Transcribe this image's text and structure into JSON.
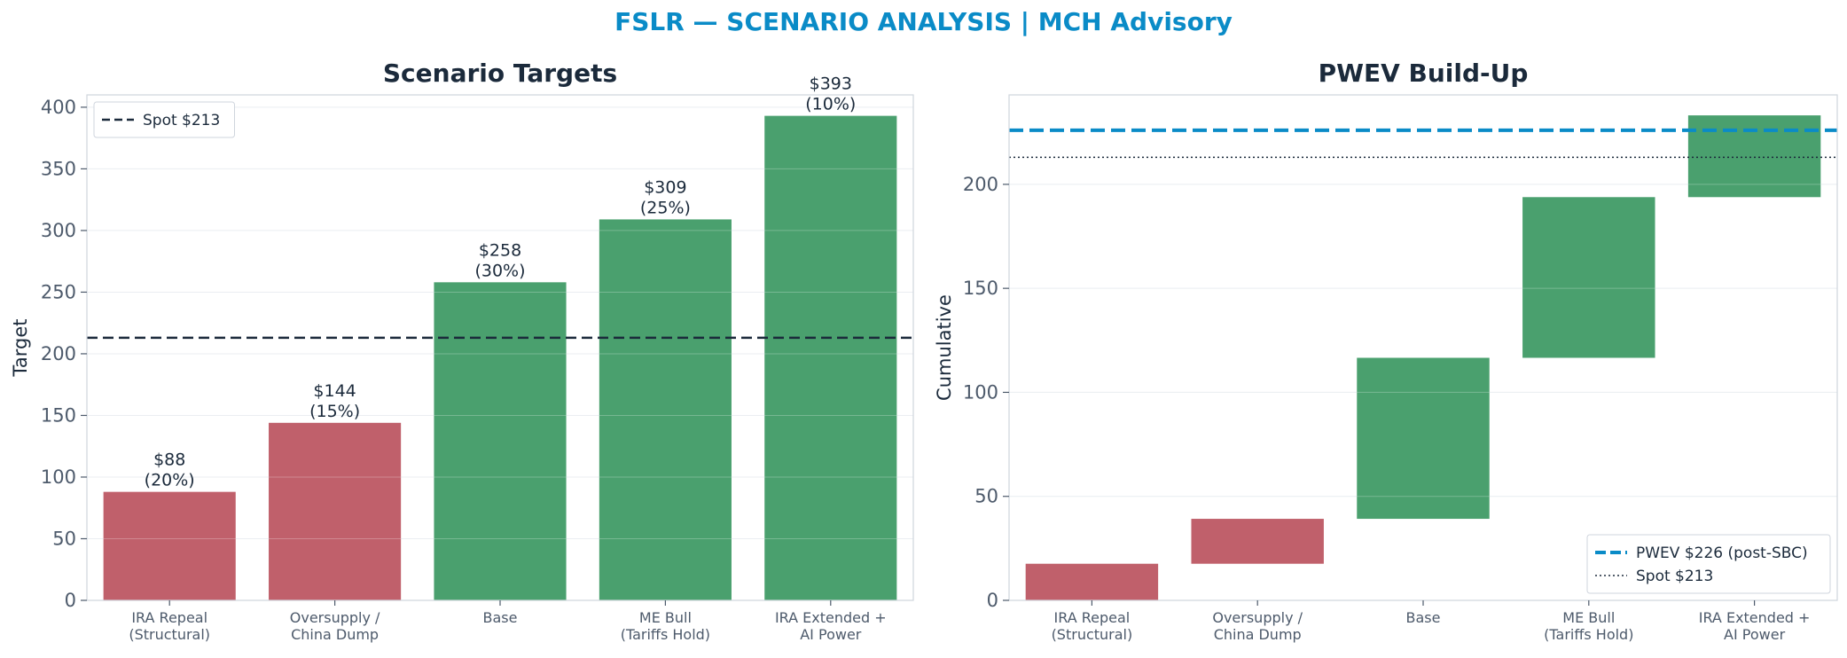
{
  "suptitle": "FSLR — SCENARIO ANALYSIS | MCH Advisory",
  "colors": {
    "bear": "#c0606b",
    "bull": "#4aa06e",
    "spot_line": "#1b2a3b",
    "pwev_line": "#0a8bc7",
    "title": "#0a8bc7"
  },
  "chart_data": [
    {
      "type": "bar",
      "title": "Scenario Targets",
      "xlabel": "",
      "ylabel": "Target",
      "categories": [
        [
          "IRA Repeal",
          "(Structural)"
        ],
        [
          "Oversupply /",
          "China Dump"
        ],
        [
          "Base"
        ],
        [
          "ME Bull",
          "(Tariffs Hold)"
        ],
        [
          "IRA Extended +",
          "AI Power"
        ]
      ],
      "values": [
        88,
        144,
        258,
        309,
        393
      ],
      "probabilities": [
        "20%",
        "15%",
        "30%",
        "25%",
        "10%"
      ],
      "data_labels": [
        [
          "$88",
          "(20%)"
        ],
        [
          "$144",
          "(15%)"
        ],
        [
          "$258",
          "(30%)"
        ],
        [
          "$309",
          "(25%)"
        ],
        [
          "$393",
          "(10%)"
        ]
      ],
      "bar_colors": [
        "bear",
        "bear",
        "bull",
        "bull",
        "bull"
      ],
      "ylim": [
        0,
        410
      ],
      "yticks": [
        0,
        50,
        100,
        150,
        200,
        250,
        300,
        350,
        400
      ],
      "reference_lines": [
        {
          "value": 213,
          "style": "dashed",
          "color": "spot_line",
          "label": "Spot $213"
        }
      ],
      "legend": {
        "position": "top-left",
        "entries": [
          "Spot $213"
        ]
      },
      "grid": "y"
    },
    {
      "type": "bar",
      "subtype": "waterfall",
      "title": "PWEV Build-Up",
      "xlabel": "",
      "ylabel": "Cumulative",
      "categories": [
        [
          "IRA Repeal",
          "(Structural)"
        ],
        [
          "Oversupply /",
          "China Dump"
        ],
        [
          "Base"
        ],
        [
          "ME Bull",
          "(Tariffs Hold)"
        ],
        [
          "IRA Extended +",
          "AI Power"
        ]
      ],
      "contributions": [
        17.6,
        21.6,
        77.4,
        77.25,
        39.3
      ],
      "cumulative": [
        17.6,
        39.2,
        116.6,
        193.85,
        233.15
      ],
      "bar_colors": [
        "bear",
        "bear",
        "bull",
        "bull",
        "bull"
      ],
      "ylim": [
        0,
        243
      ],
      "yticks": [
        0,
        50,
        100,
        150,
        200
      ],
      "reference_lines": [
        {
          "value": 226,
          "style": "dashed",
          "color": "pwev_line",
          "label": "PWEV $226 (post-SBC)"
        },
        {
          "value": 213,
          "style": "dotted",
          "color": "spot_line",
          "label": "Spot $213"
        }
      ],
      "legend": {
        "position": "bottom-right",
        "entries": [
          "PWEV $226 (post-SBC)",
          "Spot $213"
        ]
      },
      "grid": "y"
    }
  ]
}
